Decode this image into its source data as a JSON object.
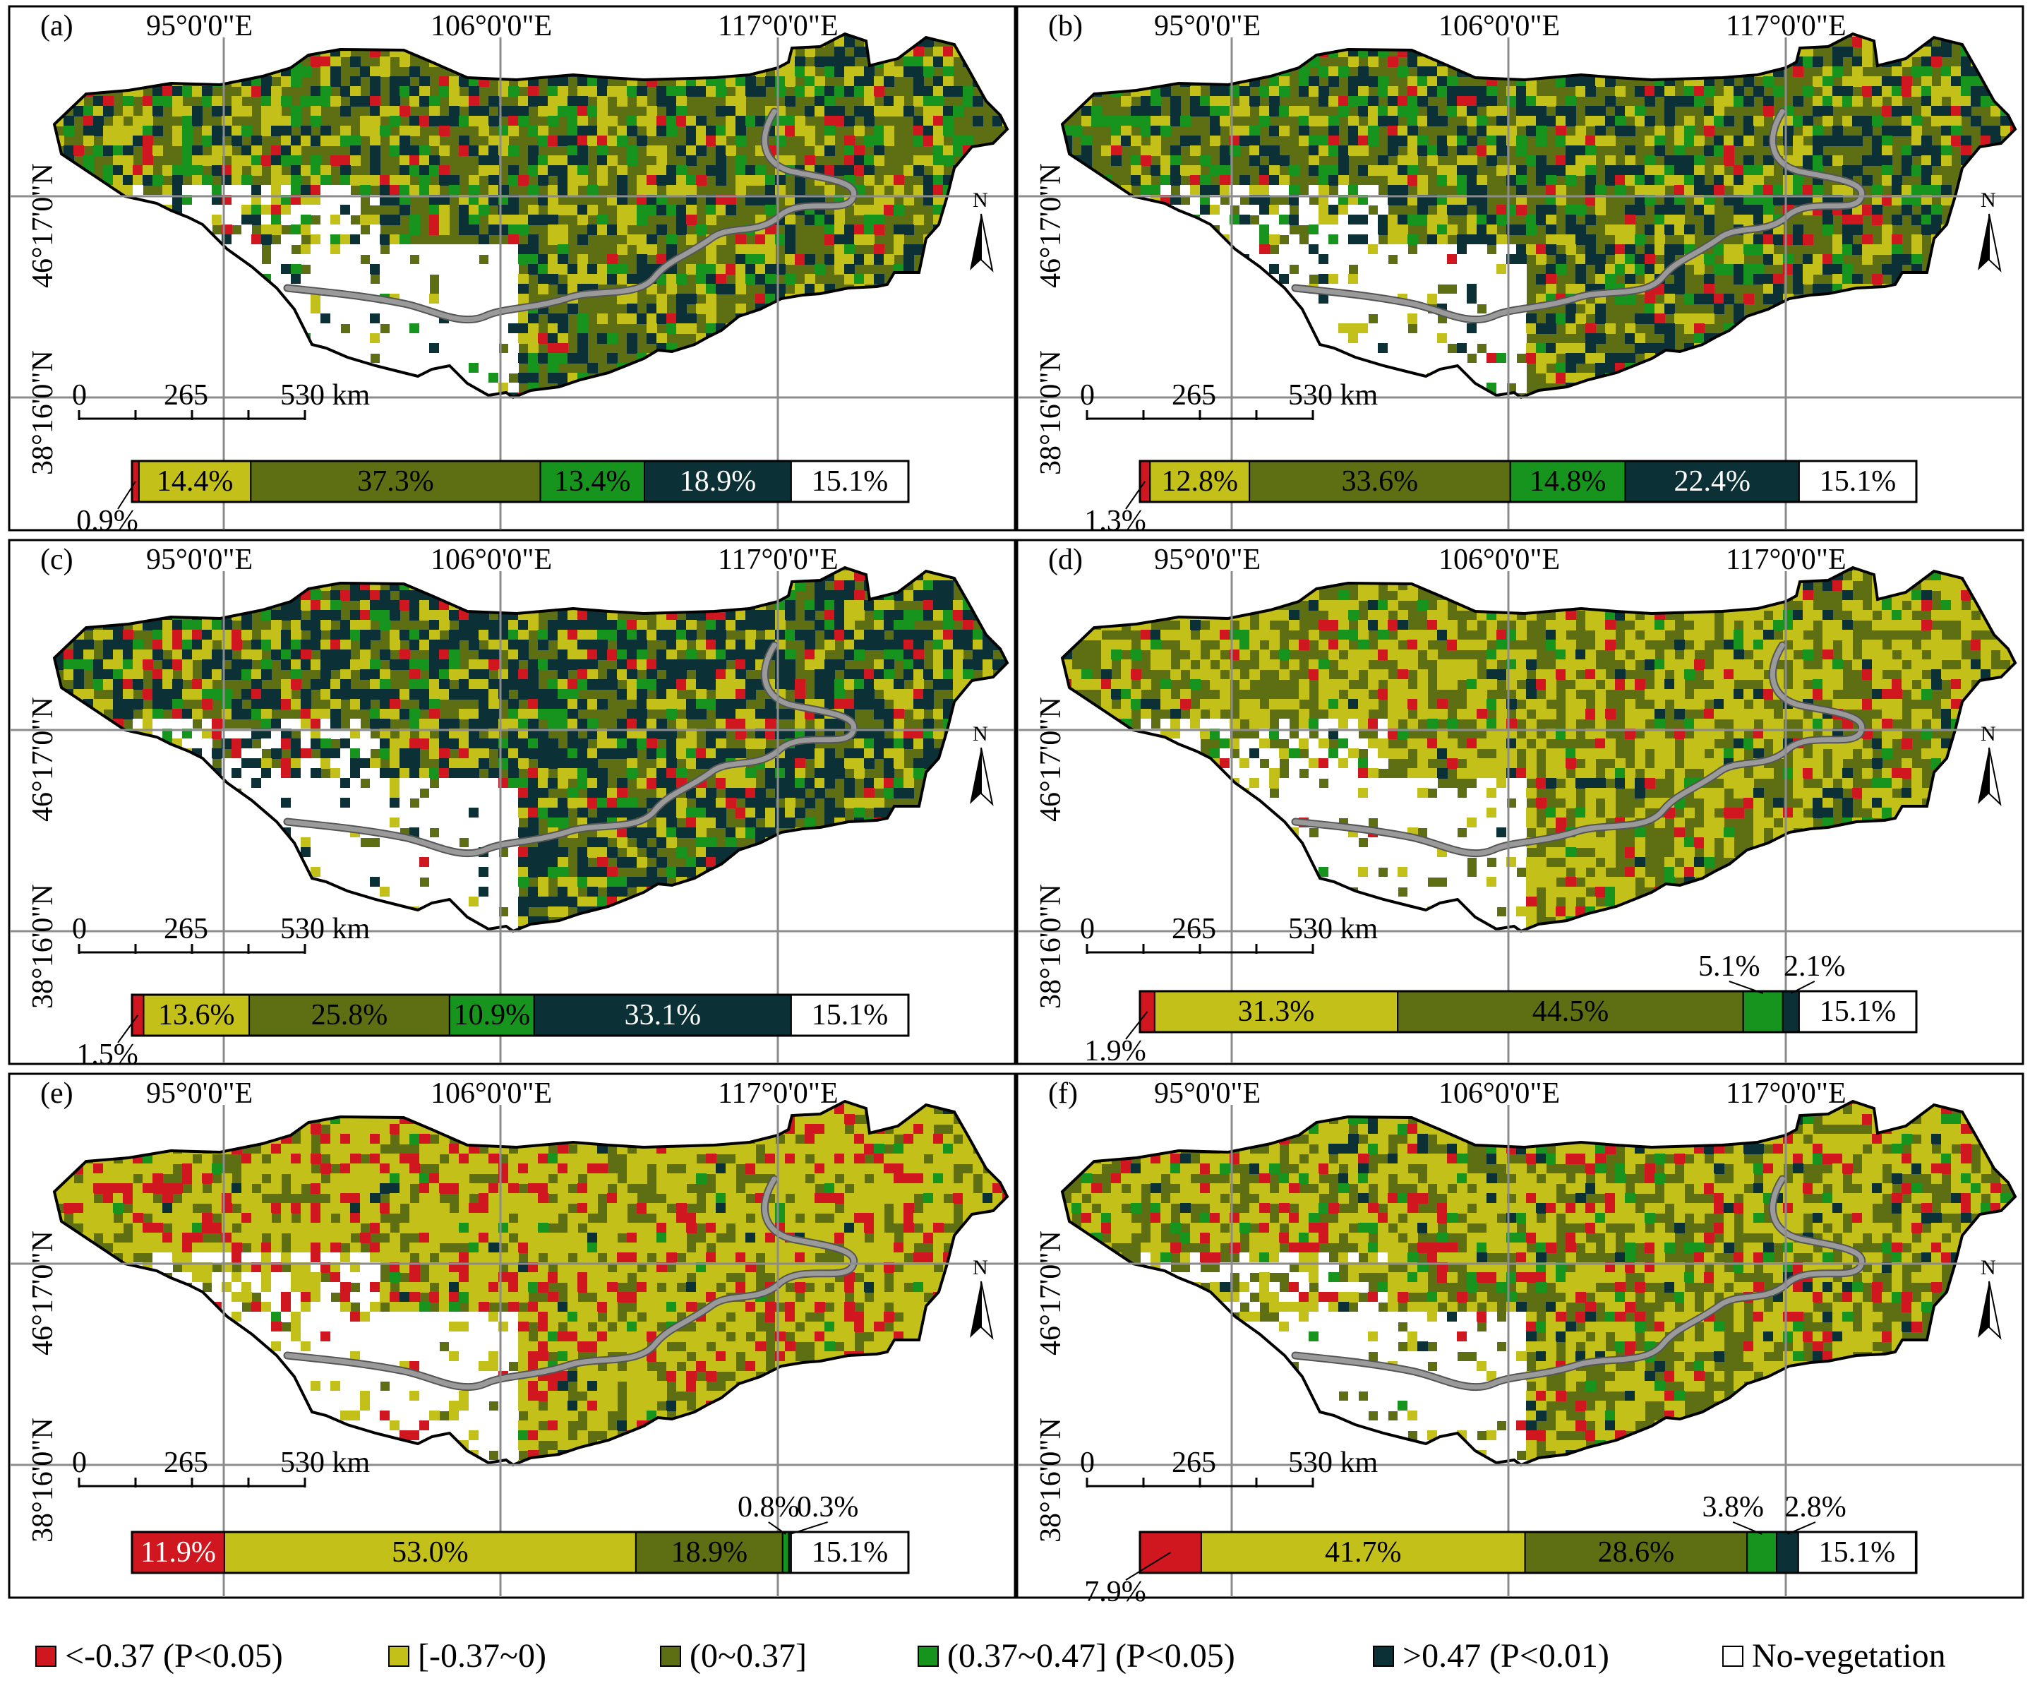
{
  "colors": {
    "cls1": "#d0161e",
    "cls2": "#c3c01a",
    "cls3": "#5e6e13",
    "cls4": "#17941d",
    "cls5": "#0b3136",
    "cls6": "#ffffff",
    "border": "#444444",
    "river": "#9a9a9a"
  },
  "map_labels": {
    "lon": [
      "95°0'0\"E",
      "106°0'0\"E",
      "117°0'0\"E"
    ],
    "lat": [
      "46°17'0\"N",
      "38°16'0\"N"
    ],
    "north": "N",
    "scale": [
      "0",
      "265",
      "530 km"
    ]
  },
  "legend": [
    {
      "key": "cls1",
      "label": "<-0.37 (P<0.05)"
    },
    {
      "key": "cls2",
      "label": "[-0.37~0)"
    },
    {
      "key": "cls3",
      "label": "(0~0.37]"
    },
    {
      "key": "cls4",
      "label": "(0.37~0.47] (P<0.05)"
    },
    {
      "key": "cls5",
      "label": ">0.47 (P<0.01)"
    },
    {
      "key": "cls6",
      "label": "No-vegetation"
    }
  ],
  "panels": [
    {
      "tag": "(a)",
      "percent": [
        0.9,
        14.4,
        37.3,
        13.4,
        18.9,
        15.1
      ],
      "labels": [
        "0.9%",
        "14.4%",
        "37.3%",
        "13.4%",
        "18.9%",
        "15.1%"
      ],
      "mix": [
        0.05,
        0.22,
        0.38,
        0.12,
        0.23
      ]
    },
    {
      "tag": "(b)",
      "percent": [
        1.3,
        12.8,
        33.6,
        14.8,
        22.4,
        15.1
      ],
      "labels": [
        "1.3%",
        "12.8%",
        "33.6%",
        "14.8%",
        "22.4%",
        "15.1%"
      ],
      "mix": [
        0.05,
        0.2,
        0.36,
        0.13,
        0.26
      ]
    },
    {
      "tag": "(c)",
      "percent": [
        1.5,
        13.6,
        25.8,
        10.9,
        33.1,
        15.1
      ],
      "labels": [
        "1.5%",
        "13.6%",
        "25.8%",
        "10.9%",
        "33.1%",
        "15.1%"
      ],
      "mix": [
        0.06,
        0.2,
        0.26,
        0.1,
        0.38
      ]
    },
    {
      "tag": "(d)",
      "percent": [
        1.9,
        31.3,
        44.5,
        5.1,
        2.1,
        15.1
      ],
      "labels": [
        "1.9%",
        "31.3%",
        "44.5%",
        "5.1%",
        "2.1%",
        "15.1%"
      ],
      "mix": [
        0.05,
        0.46,
        0.4,
        0.05,
        0.04
      ]
    },
    {
      "tag": "(e)",
      "percent": [
        11.9,
        53.0,
        18.9,
        0.8,
        0.3,
        15.1
      ],
      "labels": [
        "11.9%",
        "53.0%",
        "18.9%",
        "0.8%",
        "0.3%",
        "15.1%"
      ],
      "mix": [
        0.16,
        0.58,
        0.22,
        0.02,
        0.02
      ]
    },
    {
      "tag": "(f)",
      "percent": [
        7.9,
        41.7,
        28.6,
        3.8,
        2.8,
        15.1
      ],
      "labels": [
        "7.9%",
        "41.7%",
        "28.6%",
        "3.8%",
        "2.8%",
        "15.1%"
      ],
      "mix": [
        0.1,
        0.44,
        0.34,
        0.07,
        0.05
      ]
    }
  ]
}
